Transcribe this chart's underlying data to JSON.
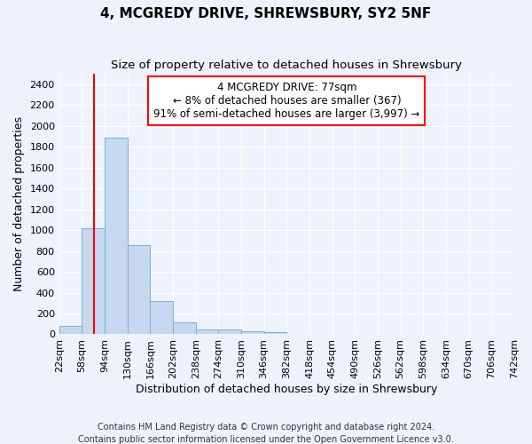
{
  "title": "4, MCGREDY DRIVE, SHREWSBURY, SY2 5NF",
  "subtitle": "Size of property relative to detached houses in Shrewsbury",
  "xlabel": "Distribution of detached houses by size in Shrewsbury",
  "ylabel": "Number of detached properties",
  "footer_line1": "Contains HM Land Registry data © Crown copyright and database right 2024.",
  "footer_line2": "Contains public sector information licensed under the Open Government Licence v3.0.",
  "annotation_line1": "4 MCGREDY DRIVE: 77sqm",
  "annotation_line2": "← 8% of detached houses are smaller (367)",
  "annotation_line3": "91% of semi-detached houses are larger (3,997) →",
  "bin_edges": [
    22,
    58,
    94,
    130,
    166,
    202,
    238,
    274,
    310,
    346,
    382,
    418,
    454,
    490,
    526,
    562,
    598,
    634,
    670,
    706,
    742
  ],
  "bin_counts": [
    80,
    1020,
    1890,
    860,
    320,
    115,
    50,
    45,
    30,
    25,
    0,
    0,
    0,
    0,
    0,
    0,
    0,
    0,
    0,
    0
  ],
  "bar_color": "#c5d8f0",
  "bar_edge_color": "#7bafd4",
  "vline_x": 77,
  "vline_color": "red",
  "ylim": [
    0,
    2500
  ],
  "yticks": [
    0,
    200,
    400,
    600,
    800,
    1000,
    1200,
    1400,
    1600,
    1800,
    2000,
    2200,
    2400
  ],
  "bg_color": "#edf2fc",
  "plot_bg_color": "#edf2fc",
  "annotation_box_color": "white",
  "annotation_box_edge": "red",
  "title_fontsize": 11,
  "subtitle_fontsize": 9.5,
  "tick_label_fontsize": 8,
  "axis_label_fontsize": 9,
  "footer_fontsize": 7,
  "annotation_fontsize": 8.5
}
